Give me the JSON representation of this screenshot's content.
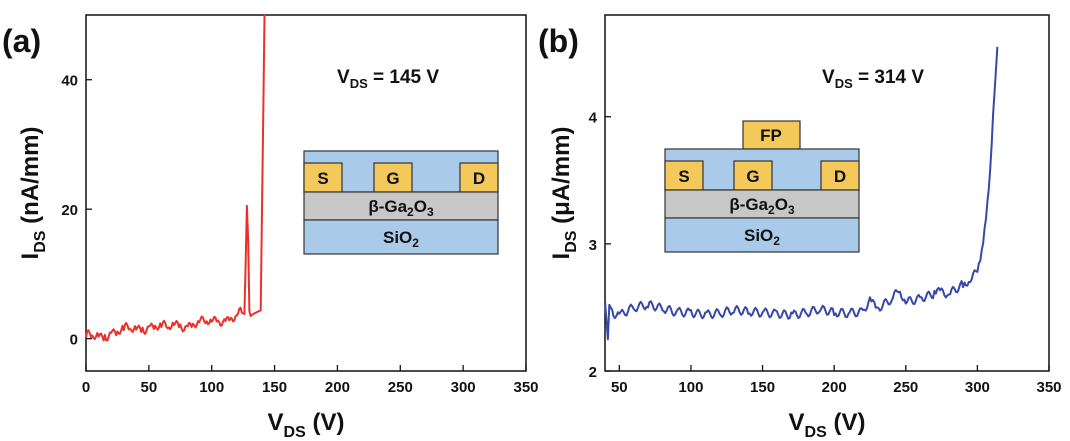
{
  "chart_data": [
    {
      "type": "line",
      "panel_label": "(a)",
      "xlabel": {
        "main": "V",
        "sub": "DS",
        "unit": " (V)"
      },
      "ylabel": {
        "main": "I",
        "sub": "DS",
        "unit": " (nA/mm)"
      },
      "xlim": [
        0,
        350
      ],
      "ylim": [
        -5,
        50
      ],
      "xticks": [
        0,
        50,
        100,
        150,
        200,
        250,
        300,
        350
      ],
      "yticks": [
        0,
        20,
        40
      ],
      "grid": false,
      "annotation": {
        "main": "V",
        "sub": "DS",
        "rest": " = 145 V"
      },
      "series": [
        {
          "color": "#e8312b",
          "x": [
            0,
            5,
            10,
            15,
            20,
            25,
            30,
            35,
            40,
            45,
            50,
            55,
            60,
            65,
            70,
            75,
            80,
            85,
            90,
            95,
            100,
            105,
            110,
            115,
            120,
            124,
            126,
            127,
            128,
            129,
            130,
            131,
            133,
            135,
            137,
            139,
            140,
            141,
            142,
            143
          ],
          "y": [
            0.2,
            0.5,
            0.3,
            0.6,
            0.9,
            1.1,
            1.3,
            1.5,
            1.4,
            1.7,
            1.9,
            2.0,
            1.8,
            1.6,
            2.1,
            2.2,
            2.0,
            2.3,
            2.5,
            2.4,
            2.6,
            2.8,
            3.0,
            3.2,
            3.6,
            4.0,
            3.8,
            12.0,
            20.5,
            15.0,
            4.2,
            3.5,
            3.8,
            4.0,
            4.2,
            4.4,
            20.0,
            35.0,
            50.0,
            50.0
          ]
        }
      ],
      "inset": {
        "labels": [
          "S",
          "G",
          "D"
        ],
        "semiconductor": [
          "β-Ga",
          "2",
          "O",
          "3"
        ],
        "substrate": [
          "SiO",
          "2"
        ],
        "field_plate": ""
      }
    },
    {
      "type": "line",
      "panel_label": "(b)",
      "xlabel": {
        "main": "V",
        "sub": "DS",
        "unit": " (V)"
      },
      "ylabel": {
        "main": "I",
        "sub": "DS",
        "unit": " (μA/mm)"
      },
      "xlim": [
        40,
        350
      ],
      "ylim": [
        2,
        4.8
      ],
      "xticks": [
        50,
        100,
        150,
        200,
        250,
        300,
        350
      ],
      "yticks": [
        2,
        3,
        4
      ],
      "grid": false,
      "annotation": {
        "main": "V",
        "sub": "DS",
        "rest": " = 314 V"
      },
      "series": [
        {
          "color": "#3649a8",
          "x": [
            40,
            42,
            43,
            45,
            50,
            60,
            70,
            80,
            90,
            100,
            110,
            120,
            130,
            140,
            150,
            160,
            170,
            180,
            190,
            200,
            210,
            220,
            225,
            230,
            240,
            245,
            250,
            260,
            270,
            275,
            280,
            290,
            295,
            300,
            303,
            306,
            309,
            312,
            314
          ],
          "y": [
            2.55,
            2.25,
            2.52,
            2.48,
            2.45,
            2.49,
            2.5,
            2.48,
            2.47,
            2.48,
            2.46,
            2.45,
            2.46,
            2.45,
            2.46,
            2.47,
            2.46,
            2.46,
            2.47,
            2.44,
            2.45,
            2.48,
            2.58,
            2.5,
            2.55,
            2.62,
            2.53,
            2.58,
            2.63,
            2.65,
            2.6,
            2.66,
            2.7,
            2.78,
            2.95,
            3.2,
            3.6,
            4.2,
            4.55
          ]
        }
      ],
      "inset": {
        "labels": [
          "S",
          "G",
          "D"
        ],
        "semiconductor": [
          "β-Ga",
          "2",
          "O",
          "3"
        ],
        "substrate": [
          "SiO",
          "2"
        ],
        "field_plate": "FP"
      }
    }
  ]
}
